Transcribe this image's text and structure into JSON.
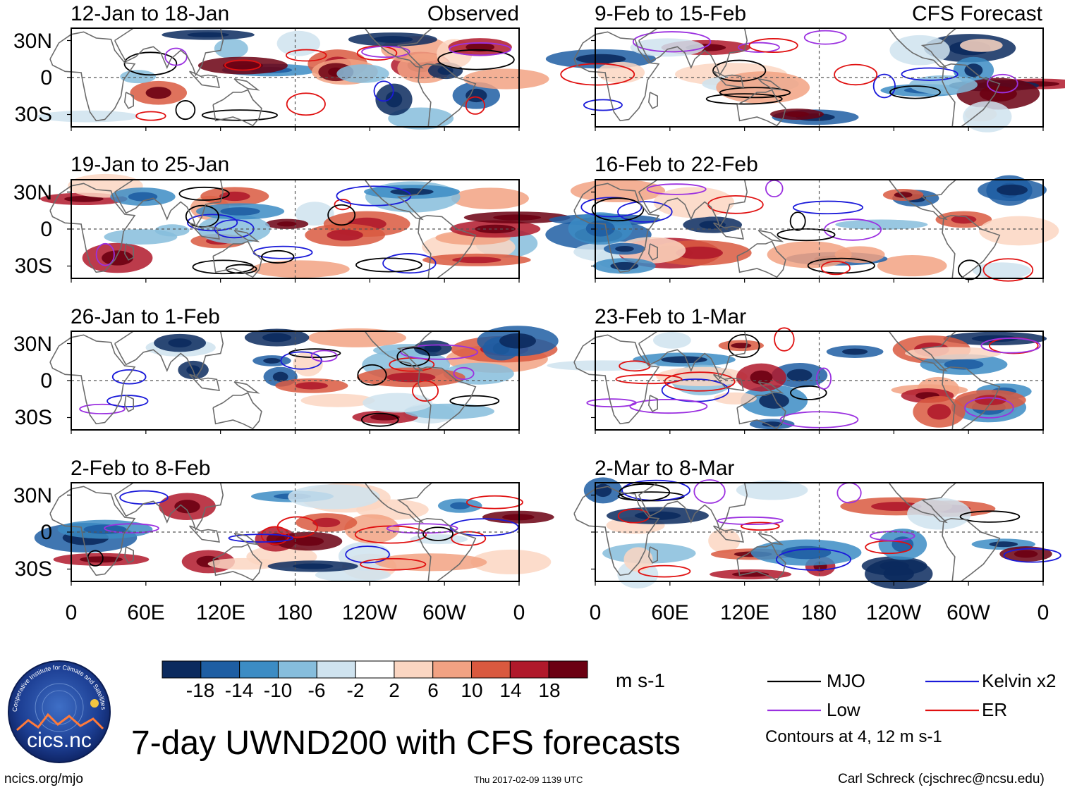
{
  "figure": {
    "main_title": "7-day UWND200 with CFS forecasts",
    "observed_label": "Observed",
    "forecast_label": "CFS Forecast",
    "timestamp": "Thu 2017-02-09 1139 UTC",
    "website": "ncics.org/mjo",
    "author": "Carl Schreck (cjschrec@ncsu.edu)",
    "logo_text": "cics.nc",
    "logo_ring_text": "Cooperative Institute for Climate and Satellites",
    "units": "m s-1",
    "contour_note": "Contours at 4, 12 m s-1"
  },
  "chart_data": {
    "type": "heatmap",
    "variable": "200-hPa zonal wind anomaly (7-day mean)",
    "lat_range": [
      -40,
      40
    ],
    "lon_range": [
      0,
      360
    ],
    "lat_ticks": [
      "30N",
      "0",
      "30S"
    ],
    "lon_ticks": [
      "0",
      "60E",
      "120E",
      "180",
      "120W",
      "60W",
      "0"
    ],
    "panels": [
      {
        "title": "12-Jan to 18-Jan",
        "source": "Observed",
        "seed": 11
      },
      {
        "title": "19-Jan to 25-Jan",
        "source": "Observed",
        "seed": 23
      },
      {
        "title": "26-Jan to 1-Feb",
        "source": "Observed",
        "seed": 37
      },
      {
        "title": "2-Feb to 8-Feb",
        "source": "Observed",
        "seed": 41
      },
      {
        "title": "9-Feb to 15-Feb",
        "source": "CFS Forecast",
        "seed": 53
      },
      {
        "title": "16-Feb to 22-Feb",
        "source": "CFS Forecast",
        "seed": 67
      },
      {
        "title": "23-Feb to 1-Mar",
        "source": "CFS Forecast",
        "seed": 79
      },
      {
        "title": "2-Mar to 8-Mar",
        "source": "CFS Forecast",
        "seed": 83
      }
    ],
    "colorbar": {
      "ticks": [
        "-18",
        "-14",
        "-10",
        "-6",
        "-2",
        "2",
        "6",
        "10",
        "14",
        "18"
      ],
      "colors": [
        "#0b2a5e",
        "#1e5ea3",
        "#3c8cc4",
        "#86bddc",
        "#cfe3ef",
        "#ffffff",
        "#fbd6c2",
        "#f2a283",
        "#d9593f",
        "#b0192b",
        "#6b0012"
      ]
    },
    "contours": [
      {
        "name": "MJO",
        "color": "#000000"
      },
      {
        "name": "Kelvin x2",
        "color": "#1a1ad9"
      },
      {
        "name": "Low",
        "color": "#9b30e0"
      },
      {
        "name": "ER",
        "color": "#e01010"
      }
    ]
  }
}
